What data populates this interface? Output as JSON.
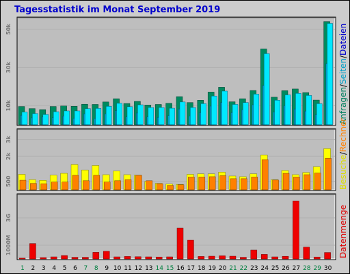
{
  "title": "Tagesstatistik im Monat September 2019",
  "colors": {
    "frame_bg": "#cccccc",
    "plot_bg": "#bebebe",
    "anfragen": "#008a5f",
    "seiten": "#009fcd",
    "dateien": "#00e8ff",
    "besuche": "#ffff00",
    "rechner": "#ff8000",
    "datenmenge": "#ee0000",
    "weekend_label": "#007f3f",
    "weekday_label": "#000000",
    "legend_anfragen": "#007f5f",
    "legend_seiten": "#00a0c8",
    "legend_dateien": "#0000cc",
    "legend_besuche": "#dddd00",
    "legend_rechner": "#ff8000",
    "legend_datenmenge": "#dd0000"
  },
  "legend": {
    "top": [
      "Anfragen",
      "Seiten",
      "Dateien"
    ],
    "top_separator": "/",
    "middle": [
      "Besuche",
      "Rechner"
    ],
    "middle_separator": "/",
    "bottom": "Datenmenge"
  },
  "chart_data": [
    {
      "type": "bar",
      "name": "Anfragen / Seiten / Dateien",
      "categories": [
        "1",
        "2",
        "3",
        "4",
        "5",
        "6",
        "7",
        "8",
        "9",
        "10",
        "11",
        "12",
        "13",
        "14",
        "15",
        "16",
        "17",
        "18",
        "19",
        "20",
        "21",
        "22",
        "23",
        "24",
        "25",
        "26",
        "27",
        "28",
        "29",
        "30"
      ],
      "weekend": [
        "1",
        "7",
        "8",
        "14",
        "15",
        "21",
        "22",
        "28",
        "29"
      ],
      "yticks": [
        {
          "v": 10000,
          "label": "10k"
        },
        {
          "v": 30000,
          "label": "30k"
        },
        {
          "v": 50000,
          "label": "50k"
        }
      ],
      "ylim": [
        0,
        56000
      ],
      "series": [
        {
          "name": "Anfragen",
          "values": [
            9500,
            8400,
            7900,
            9500,
            9800,
            9600,
            10700,
            10600,
            11900,
            13600,
            11100,
            12200,
            10300,
            10600,
            11200,
            14700,
            11600,
            12800,
            17100,
            19600,
            12000,
            13600,
            17900,
            39700,
            14400,
            17800,
            18700,
            16800,
            12900,
            54000
          ]
        },
        {
          "name": "Seiten",
          "values": [
            4900,
            3600,
            4000,
            3700,
            4500,
            3300,
            5700,
            3200,
            5700,
            7300,
            4100,
            6100,
            4100,
            3800,
            4800,
            8200,
            4600,
            6300,
            9700,
            11600,
            6300,
            7800,
            10400,
            20600,
            6600,
            9900,
            8200,
            7100,
            5200,
            32000
          ]
        },
        {
          "name": "Dateien",
          "values": [
            6600,
            5800,
            5300,
            6800,
            7200,
            7200,
            8400,
            8500,
            9600,
            11200,
            9400,
            10400,
            9000,
            9000,
            8600,
            11900,
            9000,
            11000,
            15000,
            17600,
            10600,
            11600,
            16000,
            37200,
            12800,
            15600,
            16400,
            15300,
            11000,
            53000
          ]
        }
      ]
    },
    {
      "type": "bar",
      "name": "Besuche / Rechner",
      "categories": [
        "1",
        "2",
        "3",
        "4",
        "5",
        "6",
        "7",
        "8",
        "9",
        "10",
        "11",
        "12",
        "13",
        "14",
        "15",
        "16",
        "17",
        "18",
        "19",
        "20",
        "21",
        "22",
        "23",
        "24",
        "25",
        "26",
        "27",
        "28",
        "29",
        "30"
      ],
      "yticks": [
        {
          "v": 500,
          "label": "500"
        },
        {
          "v": 2000,
          "label": "2k"
        },
        {
          "v": 3000,
          "label": "3k"
        }
      ],
      "ylim": [
        0,
        3600
      ],
      "series": [
        {
          "name": "Besuche",
          "values": [
            920,
            600,
            560,
            870,
            980,
            1500,
            1180,
            1450,
            900,
            1120,
            900,
            870,
            500,
            380,
            340,
            320,
            920,
            950,
            950,
            1050,
            820,
            780,
            950,
            2080,
            600,
            1150,
            900,
            1030,
            1370,
            2460
          ]
        },
        {
          "name": "Rechner",
          "values": [
            570,
            380,
            360,
            460,
            460,
            860,
            540,
            860,
            460,
            540,
            600,
            860,
            540,
            360,
            260,
            300,
            760,
            760,
            780,
            840,
            660,
            660,
            760,
            1800,
            580,
            980,
            760,
            900,
            1000,
            1870
          ]
        }
      ]
    },
    {
      "type": "bar",
      "name": "Datenmenge",
      "categories": [
        "1",
        "2",
        "3",
        "4",
        "5",
        "6",
        "7",
        "8",
        "9",
        "10",
        "11",
        "12",
        "13",
        "14",
        "15",
        "16",
        "17",
        "18",
        "19",
        "20",
        "21",
        "22",
        "23",
        "24",
        "25",
        "26",
        "27",
        "28",
        "29",
        "30"
      ],
      "yticks": [
        {
          "v": 1000,
          "label": "1000M"
        },
        {
          "v": 3000,
          "label": "3G"
        }
      ],
      "ylim": [
        0,
        4700
      ],
      "series": [
        {
          "name": "Datenmenge",
          "values": [
            60,
            1120,
            100,
            150,
            250,
            120,
            120,
            480,
            560,
            150,
            180,
            160,
            150,
            140,
            150,
            2250,
            1380,
            180,
            200,
            230,
            200,
            120,
            650,
            330,
            150,
            190,
            4230,
            860,
            140,
            470
          ]
        }
      ]
    }
  ]
}
